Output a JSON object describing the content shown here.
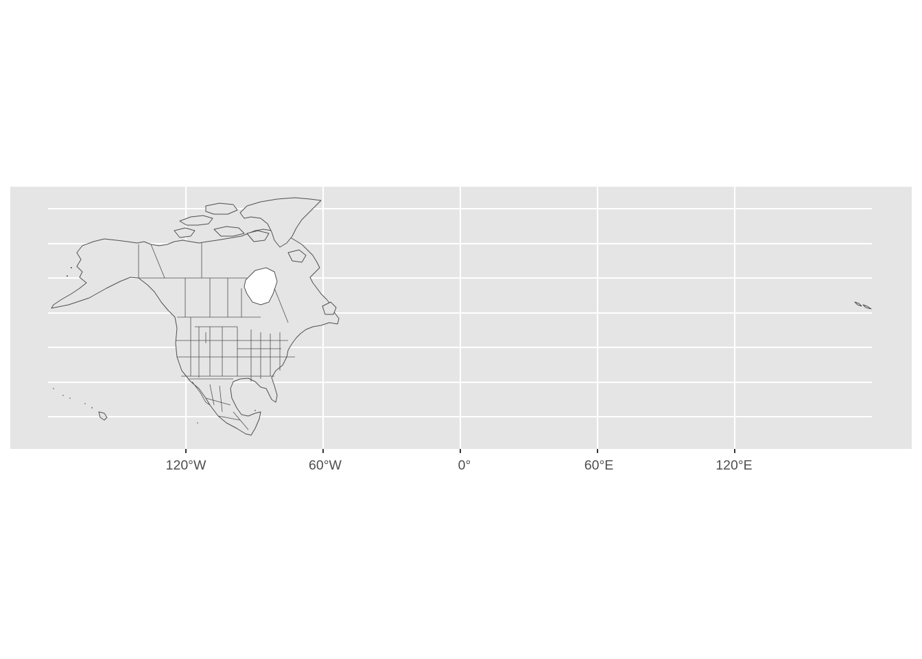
{
  "map": {
    "projection": "longlat",
    "colors": {
      "panel_background": "#e5e5e5",
      "gridlines": "#ffffff",
      "land_fill": "#e5e5e5",
      "land_border": "#4d4d4d",
      "tick_label": "#4d4d4d"
    },
    "x_axis": {
      "breaks": [
        -120,
        -60,
        0,
        60,
        120
      ],
      "labels": [
        "120°W",
        "60°W",
        "0°",
        "60°E",
        "120°E"
      ]
    },
    "graticule_lines": 7,
    "features": [
      "North America (Canada, United States, Mexico, Central America)",
      "Aleutian Islands"
    ]
  }
}
